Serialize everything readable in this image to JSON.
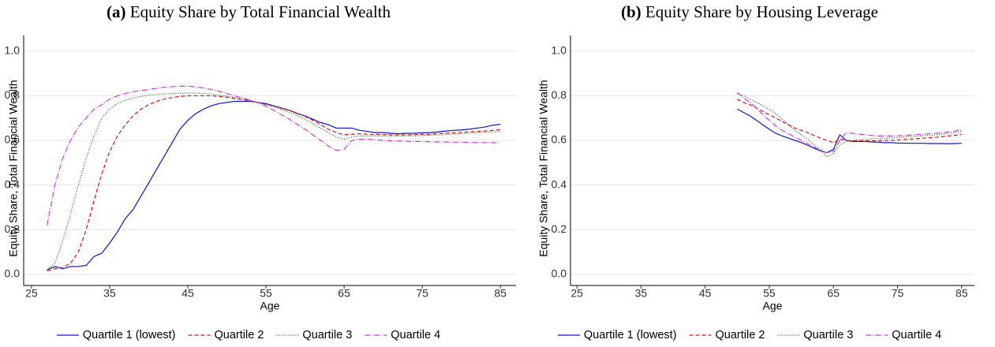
{
  "chart_data": [
    {
      "type": "line",
      "panel": "(a)",
      "title": "Equity Share by Total Financial Wealth",
      "x_label": "Age",
      "y_label": "Equity Share, Total Financial Wealth",
      "xlim": [
        24,
        87
      ],
      "xticks": [
        25,
        35,
        45,
        55,
        65,
        75,
        85
      ],
      "ylim": [
        -0.05,
        1.07
      ],
      "yticks": [
        {
          "value": 0,
          "label": "0.0"
        },
        0.2,
        0.4,
        0.6,
        0.8,
        {
          "value": 1,
          "label": "1.0"
        }
      ],
      "grid": true,
      "legend": "bottom",
      "x": [
        27,
        28,
        29,
        30,
        31,
        32,
        33,
        34,
        35,
        36,
        37,
        38,
        39,
        40,
        41,
        42,
        43,
        44,
        45,
        46,
        47,
        48,
        49,
        50,
        51,
        52,
        53,
        54,
        55,
        56,
        57,
        58,
        59,
        60,
        61,
        62,
        63,
        64,
        65,
        66,
        67,
        68,
        69,
        70,
        71,
        72,
        73,
        74,
        75,
        76,
        77,
        78,
        79,
        80,
        81,
        82,
        83,
        84,
        85
      ],
      "series": [
        {
          "name": "Quartile 1 (lowest)",
          "color": "#1010d0",
          "dash": "solid",
          "values": [
            0.02,
            0.035,
            0.025,
            0.035,
            0.035,
            0.04,
            0.08,
            0.095,
            0.14,
            0.19,
            0.25,
            0.29,
            0.35,
            0.41,
            0.47,
            0.53,
            0.59,
            0.65,
            0.69,
            0.72,
            0.74,
            0.755,
            0.765,
            0.77,
            0.775,
            0.775,
            0.775,
            0.77,
            0.765,
            0.755,
            0.745,
            0.735,
            0.72,
            0.71,
            0.695,
            0.68,
            0.67,
            0.655,
            0.655,
            0.655,
            0.645,
            0.64,
            0.635,
            0.635,
            0.632,
            0.63,
            0.632,
            0.632,
            0.634,
            0.635,
            0.638,
            0.642,
            0.645,
            0.647,
            0.65,
            0.655,
            0.66,
            0.668,
            0.672
          ]
        },
        {
          "name": "Quartile 2",
          "color": "#e01010",
          "dash": "dashed",
          "values": [
            0.015,
            0.025,
            0.03,
            0.05,
            0.1,
            0.2,
            0.33,
            0.45,
            0.55,
            0.62,
            0.67,
            0.71,
            0.74,
            0.76,
            0.775,
            0.785,
            0.792,
            0.797,
            0.8,
            0.8,
            0.8,
            0.8,
            0.797,
            0.793,
            0.788,
            0.783,
            0.777,
            0.77,
            0.762,
            0.754,
            0.745,
            0.735,
            0.722,
            0.708,
            0.69,
            0.67,
            0.65,
            0.635,
            0.625,
            0.628,
            0.63,
            0.628,
            0.627,
            0.626,
            0.625,
            0.625,
            0.625,
            0.626,
            0.627,
            0.628,
            0.63,
            0.632,
            0.634,
            0.636,
            0.638,
            0.64,
            0.642,
            0.645,
            0.648
          ]
        },
        {
          "name": "Quartile 3",
          "color": "#106010",
          "dash": "dotted",
          "values": [
            0.02,
            0.05,
            0.15,
            0.27,
            0.4,
            0.52,
            0.62,
            0.7,
            0.74,
            0.765,
            0.78,
            0.79,
            0.797,
            0.803,
            0.806,
            0.808,
            0.81,
            0.811,
            0.812,
            0.812,
            0.81,
            0.807,
            0.803,
            0.798,
            0.792,
            0.785,
            0.778,
            0.77,
            0.76,
            0.75,
            0.738,
            0.725,
            0.71,
            0.695,
            0.675,
            0.655,
            0.635,
            0.615,
            0.605,
            0.615,
            0.62,
            0.62,
            0.62,
            0.62,
            0.62,
            0.62,
            0.62,
            0.62,
            0.622,
            0.623,
            0.624,
            0.626,
            0.628,
            0.63,
            0.632,
            0.634,
            0.636,
            0.638,
            0.64
          ]
        },
        {
          "name": "Quartile 4",
          "color": "#c83cd8",
          "dash": "dashdot",
          "values": [
            0.22,
            0.4,
            0.52,
            0.6,
            0.66,
            0.7,
            0.74,
            0.76,
            0.785,
            0.8,
            0.81,
            0.818,
            0.823,
            0.828,
            0.833,
            0.838,
            0.841,
            0.843,
            0.843,
            0.84,
            0.835,
            0.828,
            0.82,
            0.81,
            0.8,
            0.79,
            0.78,
            0.768,
            0.753,
            0.735,
            0.715,
            0.695,
            0.672,
            0.65,
            0.625,
            0.6,
            0.575,
            0.555,
            0.56,
            0.6,
            0.605,
            0.605,
            0.603,
            0.6,
            0.598,
            0.597,
            0.596,
            0.595,
            0.595,
            0.594,
            0.593,
            0.593,
            0.592,
            0.592,
            0.591,
            0.59,
            0.59,
            0.59,
            0.589
          ]
        }
      ]
    },
    {
      "type": "line",
      "panel": "(b)",
      "title": "Equity Share by Housing Leverage",
      "x_label": "Age",
      "y_label": "Equity Share, Total Financial Wealth",
      "xlim": [
        24,
        87
      ],
      "xticks": [
        25,
        35,
        45,
        55,
        65,
        75,
        85
      ],
      "ylim": [
        -0.05,
        1.07
      ],
      "yticks": [
        {
          "value": 0,
          "label": "0.0"
        },
        0.2,
        0.4,
        0.6,
        0.8,
        {
          "value": 1,
          "label": "1.0"
        }
      ],
      "grid": true,
      "legend": "bottom",
      "x": [
        50,
        51,
        52,
        53,
        54,
        55,
        56,
        57,
        58,
        59,
        60,
        61,
        62,
        63,
        64,
        65,
        66,
        67,
        68,
        69,
        70,
        71,
        72,
        73,
        74,
        75,
        76,
        77,
        78,
        79,
        80,
        81,
        82,
        83,
        84,
        85
      ],
      "series": [
        {
          "name": "Quartile 1 (lowest)",
          "color": "#1010d0",
          "dash": "solid",
          "values": [
            0.74,
            0.725,
            0.71,
            0.69,
            0.67,
            0.65,
            0.632,
            0.62,
            0.61,
            0.6,
            0.59,
            0.578,
            0.565,
            0.553,
            0.545,
            0.56,
            0.625,
            0.6,
            0.595,
            0.595,
            0.595,
            0.593,
            0.592,
            0.59,
            0.59,
            0.588,
            0.588,
            0.587,
            0.587,
            0.587,
            0.586,
            0.586,
            0.586,
            0.585,
            0.586,
            0.587
          ]
        },
        {
          "name": "Quartile 2",
          "color": "#e01010",
          "dash": "dashed",
          "values": [
            0.785,
            0.77,
            0.76,
            0.745,
            0.73,
            0.715,
            0.7,
            0.685,
            0.67,
            0.655,
            0.645,
            0.635,
            0.622,
            0.61,
            0.6,
            0.59,
            0.605,
            0.6,
            0.598,
            0.598,
            0.598,
            0.598,
            0.598,
            0.6,
            0.6,
            0.602,
            0.604,
            0.606,
            0.608,
            0.61,
            0.612,
            0.614,
            0.617,
            0.62,
            0.623,
            0.627
          ]
        },
        {
          "name": "Quartile 3",
          "color": "#106010",
          "dash": "dotted",
          "values": [
            0.81,
            0.8,
            0.785,
            0.77,
            0.755,
            0.74,
            0.72,
            0.695,
            0.67,
            0.645,
            0.625,
            0.605,
            0.58,
            0.56,
            0.525,
            0.54,
            0.58,
            0.595,
            0.6,
            0.603,
            0.605,
            0.607,
            0.608,
            0.61,
            0.612,
            0.613,
            0.615,
            0.617,
            0.619,
            0.621,
            0.623,
            0.625,
            0.628,
            0.631,
            0.635,
            0.64
          ]
        },
        {
          "name": "Quartile 4",
          "color": "#c83cd8",
          "dash": "dashdot",
          "values": [
            0.815,
            0.79,
            0.77,
            0.745,
            0.715,
            0.69,
            0.665,
            0.645,
            0.63,
            0.615,
            0.6,
            0.585,
            0.57,
            0.555,
            0.545,
            0.55,
            0.6,
            0.635,
            0.632,
            0.628,
            0.625,
            0.622,
            0.62,
            0.62,
            0.62,
            0.621,
            0.622,
            0.624,
            0.626,
            0.628,
            0.63,
            0.632,
            0.635,
            0.638,
            0.642,
            0.647
          ]
        }
      ]
    }
  ]
}
